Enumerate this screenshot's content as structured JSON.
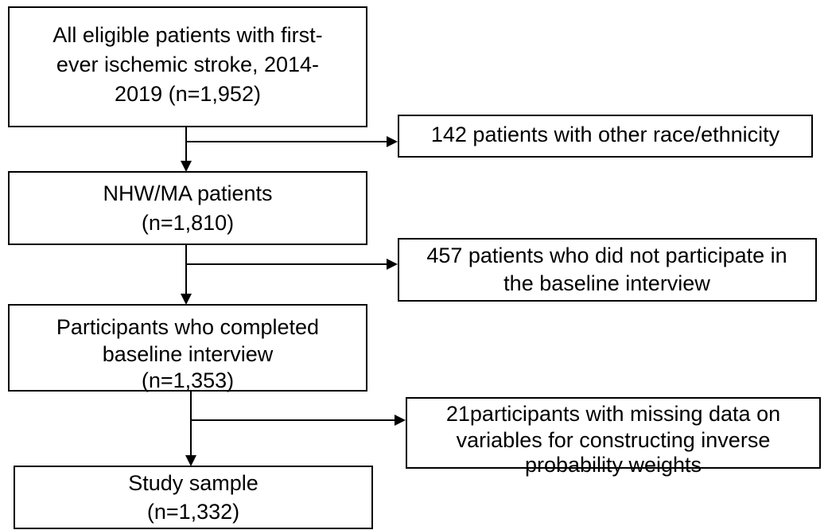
{
  "nodes": [
    {
      "lines": [
        "All eligible patients with first-",
        "ever ischemic stroke, 2014-",
        "2019 (n=1,952)"
      ]
    },
    {
      "lines": [
        "NHW/MA patients",
        "(n=1,810)"
      ]
    },
    {
      "lines": [
        "Participants who completed",
        "baseline interview",
        "(n=1,353)"
      ]
    },
    {
      "lines": [
        "Study sample",
        "(n=1,332)"
      ]
    }
  ],
  "exclusions": [
    {
      "lines": [
        "142 patients with other race/ethnicity"
      ]
    },
    {
      "lines": [
        "457 patients who did not participate in",
        "the baseline interview"
      ]
    },
    {
      "lines": [
        "21participants with missing data on",
        "variables for constructing inverse",
        "probability weights"
      ]
    }
  ]
}
